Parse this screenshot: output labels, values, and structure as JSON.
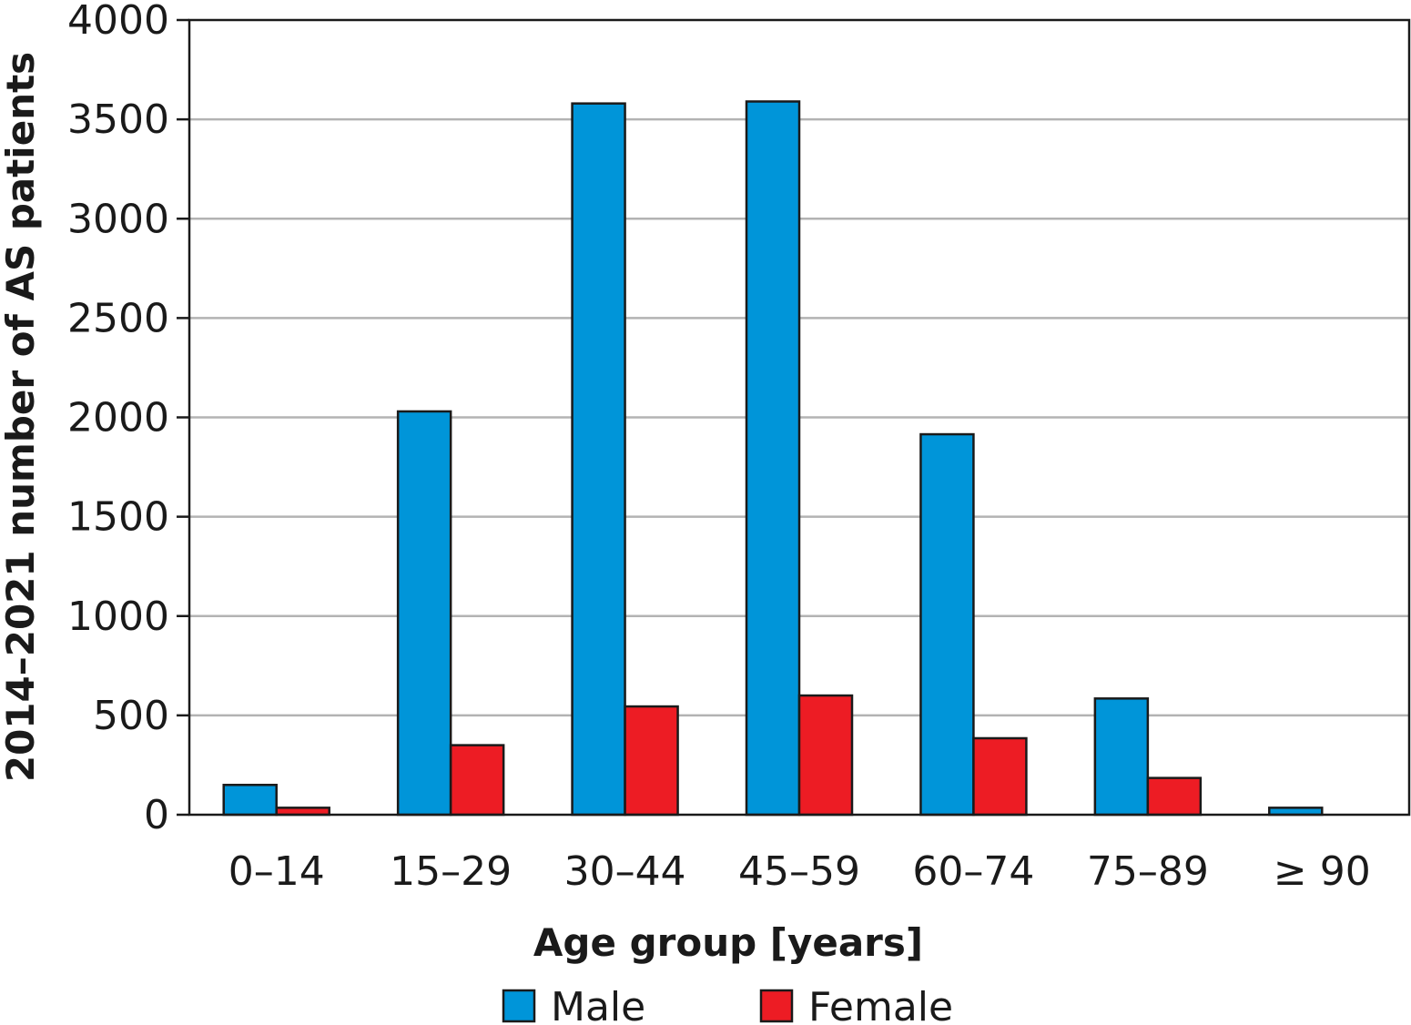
{
  "chart_data": {
    "type": "bar",
    "title": "",
    "xlabel": "Age group [years]",
    "ylabel": "2014–2021 number of AS patients",
    "categories": [
      "0–14",
      "15–29",
      "30–44",
      "45–59",
      "60–74",
      "75–89",
      "≥ 90"
    ],
    "series": [
      {
        "name": "Male",
        "color": "#0095d9",
        "values": [
          150,
          2030,
          3580,
          3590,
          1915,
          585,
          35
        ]
      },
      {
        "name": "Female",
        "color": "#ed1c24",
        "values": [
          35,
          350,
          545,
          600,
          385,
          185,
          0
        ]
      }
    ],
    "ylim": [
      0,
      4000
    ],
    "yticks": [
      0,
      500,
      1000,
      1500,
      2000,
      2500,
      3000,
      3500,
      4000
    ],
    "grid": true,
    "legend_position": "bottom"
  }
}
